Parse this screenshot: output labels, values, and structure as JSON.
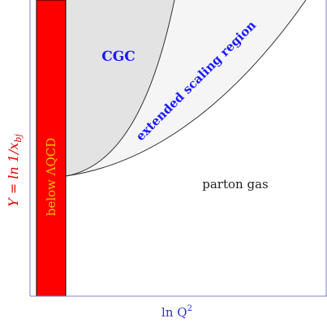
{
  "regions": {
    "below_lambda": {
      "label_prefix": "below ",
      "label_symbol": "ΛQCD",
      "fill": "#ff0000",
      "text_color": "#e8c200"
    },
    "cgc": {
      "label": "CGC",
      "fill": "#e3e3e3",
      "text_color": "#1a1aff"
    },
    "scaling": {
      "label": "extended scaling region",
      "fill": "#f5f5f5",
      "text_color": "#1a1aff"
    },
    "parton_gas": {
      "label": "parton gas",
      "text_color": "#222222"
    }
  },
  "axes": {
    "y_label": "Y = ln 1/x",
    "y_label_sub": "bj",
    "y_color": "#e00000",
    "x_label": "ln Q",
    "x_label_sup": "2",
    "x_color": "#3030e0",
    "frame_color": "#8080c0"
  }
}
